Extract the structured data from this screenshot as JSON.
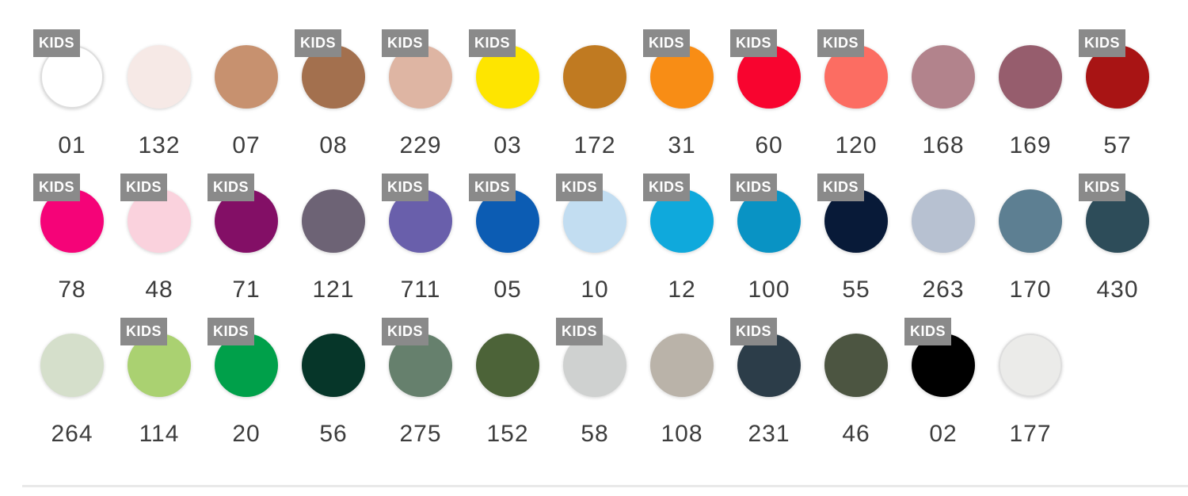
{
  "badge_label": "KIDS",
  "colors_meta": {
    "badge_bg": "#8a8a8a",
    "badge_text": "#ffffff",
    "label_text": "#3d3d3d",
    "divider": "#e9e9e9"
  },
  "rows": [
    {
      "items": [
        {
          "code": "01",
          "color": "#ffffff",
          "kids": true,
          "border": "#dedede"
        },
        {
          "code": "132",
          "color": "#f6e9e6",
          "kids": false,
          "border": ""
        },
        {
          "code": "07",
          "color": "#c7916f",
          "kids": false,
          "border": ""
        },
        {
          "code": "08",
          "color": "#a3704e",
          "kids": true,
          "border": ""
        },
        {
          "code": "229",
          "color": "#deb5a3",
          "kids": true,
          "border": ""
        },
        {
          "code": "03",
          "color": "#fee500",
          "kids": true,
          "border": ""
        },
        {
          "code": "172",
          "color": "#c07a21",
          "kids": false,
          "border": ""
        },
        {
          "code": "31",
          "color": "#f88d15",
          "kids": true,
          "border": ""
        },
        {
          "code": "60",
          "color": "#f8042f",
          "kids": true,
          "border": ""
        },
        {
          "code": "120",
          "color": "#fc6d62",
          "kids": true,
          "border": ""
        },
        {
          "code": "168",
          "color": "#b2838c",
          "kids": false,
          "border": ""
        },
        {
          "code": "169",
          "color": "#965d6d",
          "kids": false,
          "border": ""
        },
        {
          "code": "57",
          "color": "#a81414",
          "kids": true,
          "border": ""
        }
      ]
    },
    {
      "items": [
        {
          "code": "78",
          "color": "#f50378",
          "kids": true,
          "border": ""
        },
        {
          "code": "48",
          "color": "#fad2dd",
          "kids": true,
          "border": ""
        },
        {
          "code": "71",
          "color": "#830f66",
          "kids": true,
          "border": ""
        },
        {
          "code": "121",
          "color": "#6d6375",
          "kids": false,
          "border": ""
        },
        {
          "code": "711",
          "color": "#695fab",
          "kids": true,
          "border": ""
        },
        {
          "code": "05",
          "color": "#0c5cb3",
          "kids": true,
          "border": ""
        },
        {
          "code": "10",
          "color": "#c2ddf1",
          "kids": true,
          "border": ""
        },
        {
          "code": "12",
          "color": "#0fa9dc",
          "kids": true,
          "border": ""
        },
        {
          "code": "100",
          "color": "#0993c4",
          "kids": true,
          "border": ""
        },
        {
          "code": "55",
          "color": "#081a38",
          "kids": true,
          "border": ""
        },
        {
          "code": "263",
          "color": "#b7c1d1",
          "kids": false,
          "border": ""
        },
        {
          "code": "170",
          "color": "#5d7f92",
          "kids": false,
          "border": ""
        },
        {
          "code": "430",
          "color": "#2d4c59",
          "kids": true,
          "border": ""
        }
      ]
    },
    {
      "items": [
        {
          "code": "264",
          "color": "#d5dfcb",
          "kids": false,
          "border": ""
        },
        {
          "code": "114",
          "color": "#aad171",
          "kids": true,
          "border": ""
        },
        {
          "code": "20",
          "color": "#00a04a",
          "kids": true,
          "border": ""
        },
        {
          "code": "56",
          "color": "#063629",
          "kids": false,
          "border": ""
        },
        {
          "code": "275",
          "color": "#66806d",
          "kids": true,
          "border": ""
        },
        {
          "code": "152",
          "color": "#4c6338",
          "kids": false,
          "border": ""
        },
        {
          "code": "58",
          "color": "#cfd1d0",
          "kids": true,
          "border": ""
        },
        {
          "code": "108",
          "color": "#bab3a9",
          "kids": false,
          "border": ""
        },
        {
          "code": "231",
          "color": "#2c3d49",
          "kids": true,
          "border": ""
        },
        {
          "code": "46",
          "color": "#4c5541",
          "kids": false,
          "border": ""
        },
        {
          "code": "02",
          "color": "#000000",
          "kids": true,
          "border": ""
        },
        {
          "code": "177",
          "color": "#ebebe9",
          "kids": false,
          "border": "#dedede"
        }
      ]
    }
  ]
}
